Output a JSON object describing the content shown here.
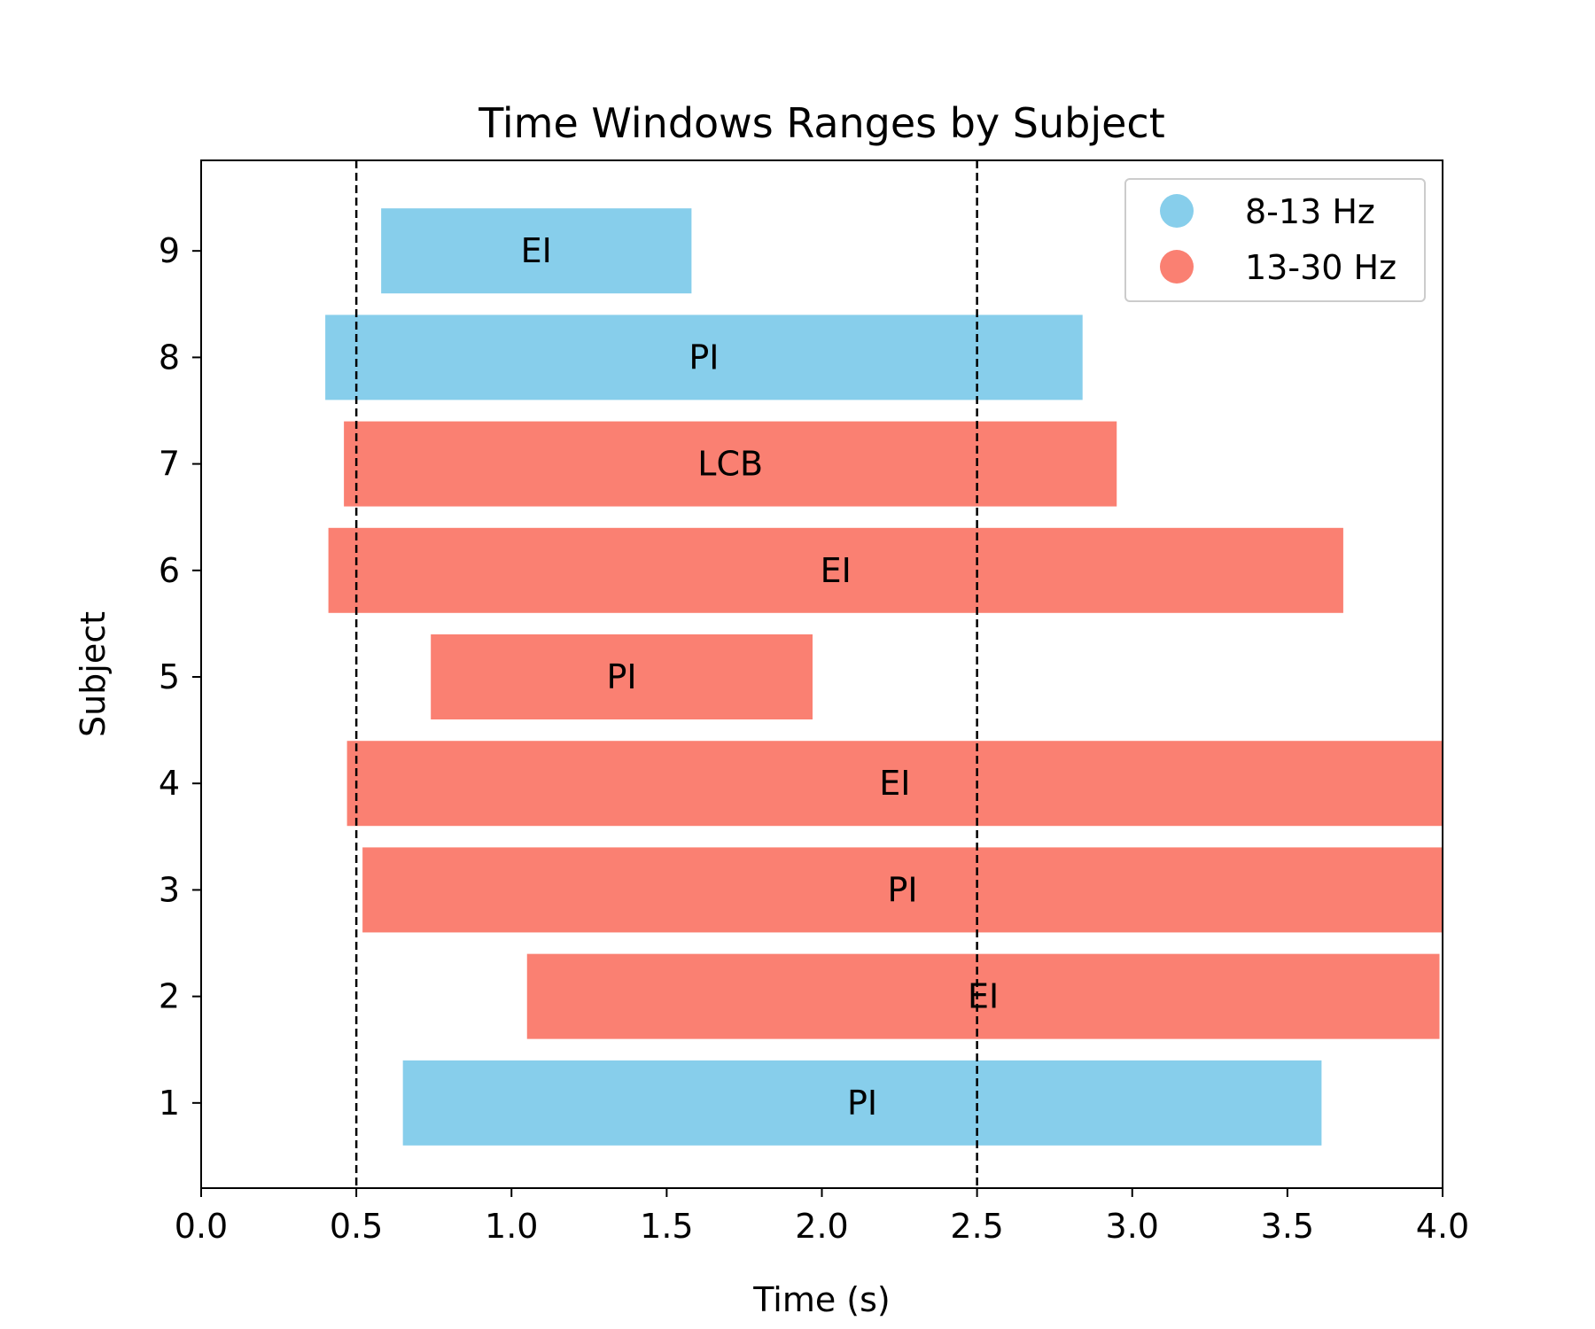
{
  "chart_data": {
    "type": "bar",
    "orientation": "horizontal",
    "title": "Time Windows Ranges by Subject",
    "xlabel": "Time (s)",
    "ylabel": "Subject",
    "xlim": [
      0,
      4.0
    ],
    "ylim": [
      0.2,
      9.85
    ],
    "xticks": [
      "0.0",
      "0.5",
      "1.0",
      "1.5",
      "2.0",
      "2.5",
      "3.0",
      "3.5",
      "4.0"
    ],
    "yticks": [
      "1",
      "2",
      "3",
      "4",
      "5",
      "6",
      "7",
      "8",
      "9"
    ],
    "reference_lines": [
      0.5,
      2.5
    ],
    "grid": false,
    "legend_position": "top-right",
    "legend": [
      {
        "label": "8-13 Hz",
        "color": "#87CEEB"
      },
      {
        "label": "13-30 Hz",
        "color": "#FA8072"
      }
    ],
    "bars": [
      {
        "subject": 1,
        "start": 0.65,
        "end": 3.61,
        "band": "8-13 Hz",
        "label": "PI",
        "color": "#87CEEB"
      },
      {
        "subject": 2,
        "start": 1.05,
        "end": 3.99,
        "band": "13-30 Hz",
        "label": "EI",
        "color": "#FA8072"
      },
      {
        "subject": 3,
        "start": 0.52,
        "end": 4.0,
        "band": "13-30 Hz",
        "label": "PI",
        "color": "#FA8072"
      },
      {
        "subject": 4,
        "start": 0.47,
        "end": 4.0,
        "band": "13-30 Hz",
        "label": "EI",
        "color": "#FA8072"
      },
      {
        "subject": 5,
        "start": 0.74,
        "end": 1.97,
        "band": "13-30 Hz",
        "label": "PI",
        "color": "#FA8072"
      },
      {
        "subject": 6,
        "start": 0.41,
        "end": 3.68,
        "band": "13-30 Hz",
        "label": "EI",
        "color": "#FA8072"
      },
      {
        "subject": 7,
        "start": 0.46,
        "end": 2.95,
        "band": "13-30 Hz",
        "label": "LCB",
        "color": "#FA8072"
      },
      {
        "subject": 8,
        "start": 0.4,
        "end": 2.84,
        "band": "8-13 Hz",
        "label": "PI",
        "color": "#87CEEB"
      },
      {
        "subject": 9,
        "start": 0.58,
        "end": 1.58,
        "band": "8-13 Hz",
        "label": "EI",
        "color": "#87CEEB"
      }
    ]
  }
}
